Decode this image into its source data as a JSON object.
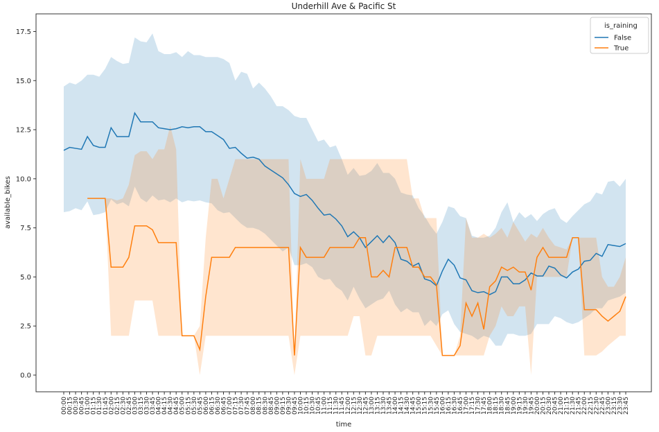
{
  "chart_data": {
    "type": "line",
    "title": "Underhill Ave & Pacific St",
    "x_label": "time",
    "y_label": "available_bikes",
    "legend_title": "is_raining",
    "legend_position": "upper right",
    "band_opacity": 0.2,
    "categories": [
      "00:00",
      "00:15",
      "00:30",
      "00:45",
      "01:00",
      "01:15",
      "01:30",
      "01:45",
      "02:00",
      "02:15",
      "02:30",
      "02:45",
      "03:00",
      "03:15",
      "03:30",
      "03:45",
      "04:00",
      "04:15",
      "04:30",
      "04:45",
      "05:00",
      "05:15",
      "05:30",
      "05:45",
      "06:00",
      "06:15",
      "06:30",
      "06:45",
      "07:00",
      "07:15",
      "07:30",
      "07:45",
      "08:00",
      "08:15",
      "08:30",
      "08:45",
      "09:00",
      "09:15",
      "09:30",
      "09:45",
      "10:00",
      "10:15",
      "10:30",
      "10:45",
      "11:00",
      "11:15",
      "11:30",
      "11:45",
      "12:00",
      "12:15",
      "12:30",
      "12:45",
      "13:00",
      "13:15",
      "13:30",
      "13:45",
      "14:00",
      "14:15",
      "14:30",
      "14:45",
      "15:00",
      "15:15",
      "15:30",
      "15:45",
      "16:00",
      "16:15",
      "16:30",
      "16:45",
      "17:00",
      "17:15",
      "17:30",
      "17:45",
      "18:00",
      "18:15",
      "18:30",
      "18:45",
      "19:00",
      "19:15",
      "19:30",
      "19:45",
      "20:00",
      "20:15",
      "20:30",
      "20:45",
      "21:00",
      "21:15",
      "21:30",
      "21:45",
      "22:00",
      "22:15",
      "22:30",
      "22:45",
      "23:00",
      "23:15",
      "23:30",
      "23:45"
    ],
    "ylim": [
      -0.85,
      18.4
    ],
    "yticks": [
      {
        "value": 0,
        "label": "0.0"
      },
      2.5,
      {
        "value": 5,
        "label": "5.0"
      },
      7.5,
      {
        "value": 10,
        "label": "10.0"
      },
      12.5,
      {
        "value": 15,
        "label": "15.0"
      },
      17.5
    ],
    "series": [
      {
        "name": "False",
        "color": "#1f77b4",
        "values": [
          11.45,
          11.6,
          11.55,
          11.5,
          12.15,
          11.7,
          11.6,
          11.6,
          12.6,
          12.15,
          12.15,
          12.15,
          13.35,
          12.9,
          12.9,
          12.9,
          12.6,
          12.55,
          12.5,
          12.55,
          12.65,
          12.6,
          12.65,
          12.65,
          12.4,
          12.4,
          12.2,
          12.0,
          11.55,
          11.6,
          11.3,
          11.05,
          11.1,
          11.0,
          10.65,
          10.45,
          10.25,
          10.05,
          9.7,
          9.25,
          9.1,
          9.2,
          8.9,
          8.5,
          8.15,
          8.2,
          7.95,
          7.6,
          7.05,
          7.3,
          7.0,
          6.5,
          6.8,
          7.1,
          6.75,
          7.1,
          6.75,
          5.9,
          5.8,
          5.55,
          5.7,
          4.9,
          4.8,
          4.55,
          5.3,
          5.9,
          5.6,
          4.95,
          4.85,
          4.3,
          4.2,
          4.25,
          4.1,
          4.25,
          5.0,
          5.0,
          4.65,
          4.65,
          4.85,
          5.2,
          5.05,
          5.05,
          5.55,
          5.45,
          5.1,
          4.95,
          5.25,
          5.4,
          5.8,
          5.85,
          6.2,
          6.05,
          6.65,
          6.6,
          6.55,
          6.7
        ],
        "upper": [
          14.7,
          14.9,
          14.8,
          15.0,
          15.3,
          15.3,
          15.2,
          15.6,
          16.2,
          16.0,
          15.85,
          15.9,
          17.2,
          17.0,
          16.95,
          17.4,
          16.5,
          16.35,
          16.35,
          16.45,
          16.2,
          16.5,
          16.3,
          16.3,
          16.2,
          16.2,
          16.2,
          16.1,
          15.9,
          15.0,
          15.45,
          15.35,
          14.6,
          14.9,
          14.6,
          14.2,
          13.7,
          13.7,
          13.5,
          13.2,
          13.1,
          13.1,
          12.5,
          11.9,
          12.0,
          11.6,
          11.7,
          11.0,
          10.2,
          10.55,
          10.15,
          10.2,
          10.4,
          10.8,
          10.3,
          10.3,
          10.0,
          9.3,
          9.2,
          9.15,
          8.5,
          8.1,
          7.6,
          7.2,
          7.8,
          8.6,
          8.5,
          8.1,
          8.0,
          7.1,
          7.0,
          7.0,
          7.1,
          7.5,
          8.3,
          8.8,
          7.8,
          8.3,
          8.0,
          8.2,
          7.85,
          8.2,
          8.4,
          8.5,
          7.95,
          7.75,
          8.1,
          8.4,
          8.7,
          8.85,
          9.3,
          9.2,
          9.85,
          9.9,
          9.6,
          10.0
        ],
        "lower": [
          8.3,
          8.35,
          8.5,
          8.4,
          8.85,
          8.15,
          8.2,
          8.3,
          8.95,
          8.7,
          8.8,
          8.6,
          9.6,
          9.0,
          8.8,
          9.15,
          8.9,
          8.95,
          8.8,
          9.0,
          8.8,
          8.9,
          8.85,
          8.9,
          8.8,
          8.75,
          8.4,
          8.25,
          8.3,
          8.0,
          7.7,
          7.5,
          7.5,
          7.4,
          7.2,
          6.9,
          6.6,
          6.3,
          6.5,
          5.6,
          5.6,
          5.7,
          5.5,
          5.0,
          4.85,
          4.9,
          4.5,
          4.3,
          3.8,
          4.5,
          3.9,
          3.4,
          3.6,
          3.8,
          3.9,
          4.3,
          3.6,
          3.2,
          3.4,
          3.2,
          3.2,
          2.5,
          2.8,
          2.5,
          3.1,
          3.3,
          2.6,
          2.2,
          2.1,
          2.0,
          1.8,
          2.0,
          1.9,
          1.5,
          1.5,
          2.1,
          2.1,
          2.0,
          2.0,
          2.1,
          2.6,
          2.6,
          2.6,
          3.0,
          2.9,
          2.7,
          2.6,
          2.7,
          2.9,
          3.1,
          3.4,
          3.4,
          3.8,
          3.9,
          4.0,
          4.2
        ]
      },
      {
        "name": "True",
        "color": "#ff7f0e",
        "values": [
          null,
          null,
          null,
          null,
          9.0,
          9.0,
          9.0,
          9.0,
          5.5,
          5.5,
          5.5,
          6.0,
          7.6,
          7.6,
          7.6,
          7.4,
          6.75,
          6.75,
          6.75,
          6.75,
          2.0,
          2.0,
          2.0,
          1.3,
          4.0,
          6.0,
          6.0,
          6.0,
          6.0,
          6.5,
          6.5,
          6.5,
          6.5,
          6.5,
          6.5,
          6.5,
          6.5,
          6.5,
          6.5,
          1.0,
          6.5,
          6.0,
          6.0,
          6.0,
          6.0,
          6.5,
          6.5,
          6.5,
          6.5,
          6.5,
          7.0,
          7.0,
          5.0,
          5.0,
          5.33,
          5.0,
          6.5,
          6.5,
          6.5,
          5.5,
          5.5,
          5.0,
          5.0,
          4.6,
          1.0,
          1.0,
          1.0,
          1.5,
          3.67,
          3.0,
          3.67,
          2.33,
          4.5,
          4.8,
          5.5,
          5.33,
          5.5,
          5.25,
          5.25,
          4.33,
          6.0,
          6.5,
          6.0,
          6.0,
          6.0,
          6.0,
          7.0,
          7.0,
          3.33,
          3.33,
          3.33,
          3.0,
          2.75,
          3.0,
          3.25,
          4.0
        ],
        "upper": [
          null,
          null,
          null,
          null,
          9.0,
          9.0,
          9.0,
          9.0,
          9.0,
          8.9,
          9.0,
          9.7,
          11.2,
          11.4,
          11.4,
          11.0,
          11.5,
          11.5,
          12.7,
          11.5,
          2.0,
          2.0,
          2.0,
          2.5,
          7.0,
          10.0,
          10.0,
          9.0,
          10.0,
          11.0,
          11.0,
          11.0,
          11.0,
          11.0,
          11.0,
          11.0,
          11.0,
          11.0,
          11.0,
          1.0,
          11.0,
          10.0,
          10.0,
          10.0,
          10.0,
          11.0,
          11.0,
          11.0,
          11.0,
          11.0,
          11.0,
          11.0,
          11.0,
          11.0,
          11.0,
          11.0,
          11.0,
          11.0,
          11.0,
          9.0,
          9.0,
          8.0,
          8.0,
          8.0,
          1.0,
          1.0,
          1.0,
          2.0,
          8.0,
          7.0,
          7.0,
          7.2,
          7.0,
          7.2,
          7.5,
          7.0,
          7.8,
          7.3,
          6.8,
          7.2,
          7.0,
          7.5,
          7.0,
          6.6,
          6.5,
          6.4,
          7.0,
          7.0,
          7.0,
          7.0,
          7.0,
          5.0,
          4.5,
          4.5,
          5.0,
          6.0
        ],
        "lower": [
          null,
          null,
          null,
          null,
          9.0,
          9.0,
          9.0,
          9.0,
          2.0,
          2.0,
          2.0,
          2.0,
          3.8,
          3.8,
          3.8,
          3.8,
          2.0,
          2.0,
          2.0,
          2.0,
          2.0,
          2.0,
          2.0,
          0.0,
          2.0,
          2.0,
          2.0,
          2.0,
          2.0,
          2.0,
          2.0,
          2.0,
          2.0,
          2.0,
          2.0,
          2.0,
          2.0,
          2.0,
          2.0,
          0.0,
          2.0,
          2.0,
          2.0,
          2.0,
          2.0,
          2.0,
          2.0,
          2.0,
          2.0,
          3.0,
          3.0,
          1.0,
          1.0,
          2.0,
          2.0,
          2.0,
          2.0,
          2.0,
          2.0,
          2.0,
          2.0,
          2.0,
          2.0,
          1.5,
          1.0,
          1.0,
          1.0,
          1.0,
          1.0,
          1.0,
          1.0,
          1.0,
          2.0,
          2.5,
          3.5,
          3.0,
          3.0,
          3.5,
          3.5,
          0.0,
          5.0,
          5.0,
          5.0,
          5.0,
          5.0,
          5.0,
          7.0,
          7.0,
          1.0,
          1.0,
          1.0,
          1.2,
          1.5,
          1.75,
          2.0,
          2.0
        ]
      }
    ]
  }
}
